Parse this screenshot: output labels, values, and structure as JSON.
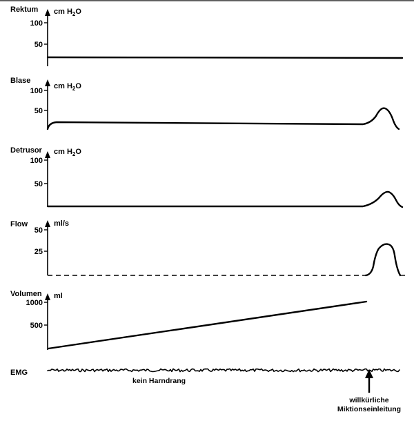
{
  "panels": [
    {
      "id": "rektum",
      "label": "Rektum",
      "unit_main": "cm H",
      "unit_sub": "2",
      "unit_end": "O",
      "ticks": [
        "100",
        "50"
      ]
    },
    {
      "id": "blase",
      "label": "Blase",
      "unit_main": "cm H",
      "unit_sub": "2",
      "unit_end": "O",
      "ticks": [
        "100",
        "50"
      ]
    },
    {
      "id": "detrusor",
      "label": "Detrusor",
      "unit_main": "cm H",
      "unit_sub": "2",
      "unit_end": "O",
      "ticks": [
        "100",
        "50"
      ]
    },
    {
      "id": "flow",
      "label": "Flow",
      "unit_main": "ml/s",
      "unit_sub": "",
      "unit_end": "",
      "ticks": [
        "50",
        "25"
      ]
    },
    {
      "id": "volumen",
      "label": "Volumen",
      "unit_main": "ml",
      "unit_sub": "",
      "unit_end": "",
      "ticks": [
        "1000",
        "500"
      ]
    }
  ],
  "emg": {
    "label": "EMG"
  },
  "annotations": {
    "no_urge": "kein Harndrang",
    "voluntary_line1": "willkürliche",
    "voluntary_line2": "Miktionseinleitung"
  }
}
